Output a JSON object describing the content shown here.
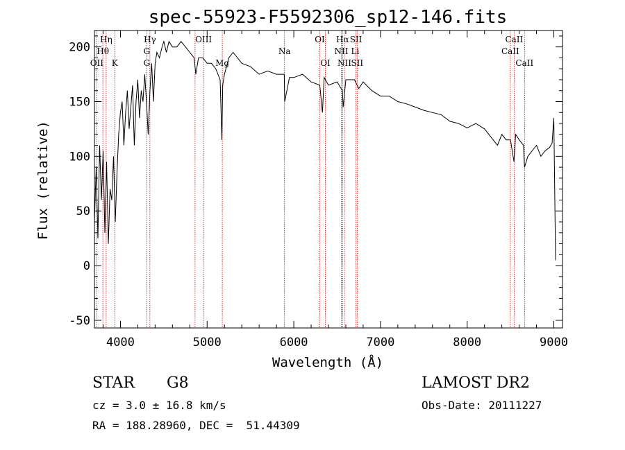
{
  "chart_data": {
    "type": "line",
    "title": "spec-55923-F5592306_sp12-146.fits",
    "xlabel": "Wavelength (Å)",
    "ylabel": "Flux (relative)",
    "xlim": [
      3700,
      9100
    ],
    "ylim": [
      -57,
      215
    ],
    "x_ticks": [
      4000,
      5000,
      6000,
      7000,
      8000,
      9000
    ],
    "y_ticks": [
      -50,
      0,
      50,
      100,
      150,
      200
    ],
    "grid": false,
    "series": [
      {
        "x": [
          3700,
          3720,
          3740,
          3760,
          3780,
          3800,
          3820,
          3840,
          3860,
          3880,
          3900,
          3920,
          3940,
          3960,
          3980,
          4000,
          4020,
          4040,
          4060,
          4080,
          4100,
          4120,
          4140,
          4160,
          4180,
          4200,
          4220,
          4240,
          4260,
          4280,
          4300,
          4320,
          4340,
          4360,
          4380,
          4400,
          4420,
          4450,
          4480,
          4500,
          4530,
          4560,
          4600,
          4650,
          4700,
          4750,
          4800,
          4850,
          4870,
          4900,
          4950,
          5000,
          5050,
          5100,
          5150,
          5170,
          5180,
          5200,
          5250,
          5300,
          5400,
          5500,
          5600,
          5700,
          5800,
          5890,
          5895,
          5950,
          6000,
          6100,
          6200,
          6300,
          6330,
          6350,
          6400,
          6500,
          6560,
          6570,
          6600,
          6700,
          6750,
          6800,
          6900,
          7000,
          7100,
          7200,
          7300,
          7400,
          7500,
          7600,
          7700,
          7800,
          7900,
          8000,
          8100,
          8200,
          8300,
          8350,
          8400,
          8450,
          8500,
          8540,
          8560,
          8600,
          8650,
          8662,
          8700,
          8750,
          8800,
          8850,
          8900,
          8950,
          8980,
          9000,
          9020
        ],
        "values": [
          40,
          90,
          25,
          110,
          60,
          105,
          30,
          95,
          20,
          70,
          60,
          100,
          40,
          85,
          120,
          140,
          150,
          110,
          140,
          160,
          125,
          145,
          165,
          110,
          150,
          170,
          135,
          160,
          150,
          175,
          150,
          120,
          160,
          185,
          150,
          185,
          195,
          190,
          200,
          205,
          195,
          205,
          200,
          200,
          205,
          200,
          195,
          190,
          175,
          190,
          190,
          185,
          185,
          180,
          170,
          115,
          165,
          175,
          190,
          195,
          185,
          182,
          175,
          178,
          175,
          175,
          150,
          172,
          172,
          175,
          168,
          165,
          140,
          172,
          165,
          168,
          160,
          145,
          170,
          170,
          162,
          168,
          160,
          155,
          155,
          150,
          148,
          145,
          142,
          140,
          138,
          132,
          130,
          126,
          130,
          125,
          115,
          110,
          120,
          115,
          115,
          95,
          120,
          115,
          110,
          90,
          100,
          105,
          110,
          100,
          105,
          108,
          112,
          135,
          5
        ]
      }
    ],
    "line_labels": [
      {
        "text": "Hη",
        "x": 3835,
        "row": 0
      },
      {
        "text": "Hθ",
        "x": 3797,
        "row": 1
      },
      {
        "text": "OII",
        "x": 3727,
        "row": 2
      },
      {
        "text": "K",
        "x": 3934,
        "row": 2
      },
      {
        "text": "Hγ",
        "x": 4340,
        "row": 0
      },
      {
        "text": "G",
        "x": 4304,
        "row": 1
      },
      {
        "text": "G",
        "x": 4304,
        "row": 2
      },
      {
        "text": "OIII",
        "x": 4959,
        "row": 0
      },
      {
        "text": "Mg",
        "x": 5175,
        "row": 2
      },
      {
        "text": "Na",
        "x": 5893,
        "row": 1
      },
      {
        "text": "OI",
        "x": 6300,
        "row": 0
      },
      {
        "text": "OI",
        "x": 6364,
        "row": 2
      },
      {
        "text": "Hα",
        "x": 6563,
        "row": 0
      },
      {
        "text": "SII",
        "x": 6717,
        "row": 0
      },
      {
        "text": "NII",
        "x": 6548,
        "row": 1
      },
      {
        "text": "Li",
        "x": 6708,
        "row": 1
      },
      {
        "text": "NII",
        "x": 6584,
        "row": 2
      },
      {
        "text": "SII",
        "x": 6731,
        "row": 2
      },
      {
        "text": "CaII",
        "x": 8542,
        "row": 0
      },
      {
        "text": "CaII",
        "x": 8498,
        "row": 1
      },
      {
        "text": "CaII",
        "x": 8662,
        "row": 2
      }
    ],
    "marker_lines": [
      3727,
      3797,
      3835,
      3934,
      4304,
      4340,
      4861,
      4959,
      5175,
      5893,
      6300,
      6364,
      6548,
      6563,
      6584,
      6717,
      6731,
      8498,
      8542,
      8662
    ],
    "colors": {
      "spectrum": "#000000",
      "markers": "#cc0000",
      "axes": "#000000"
    }
  },
  "info": {
    "class": "STAR",
    "subclass": "G8",
    "survey": "LAMOST DR2",
    "cz": "cz = 3.0 ± 16.8 km/s",
    "obs_date": "Obs-Date: 20111227",
    "radec": "RA = 188.28960, DEC =  51.44309"
  }
}
